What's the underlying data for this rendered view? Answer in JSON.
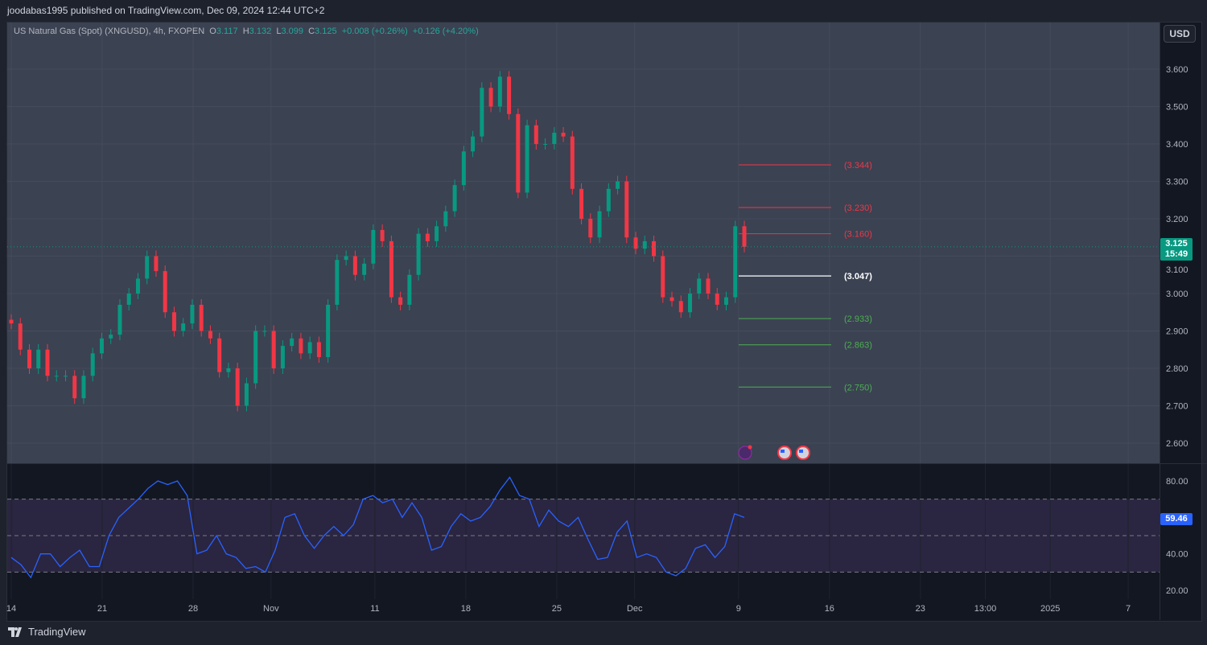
{
  "header": {
    "published": "joodabas1995 published on TradingView.com, Dec 09, 2024 12:44 UTC+2"
  },
  "legend": {
    "symbol": "US Natural Gas (Spot) (XNGUSD), 4h, FXOPEN",
    "o_label": "O",
    "o": "3.117",
    "h_label": "H",
    "h": "3.132",
    "l_label": "L",
    "l": "3.099",
    "c_label": "C",
    "c": "3.125",
    "change": "+0.008 (+0.26%)",
    "change2": "+0.126 (+4.20%)"
  },
  "currency": "USD",
  "last_price": {
    "price": "3.125",
    "countdown": "15:49"
  },
  "rsi_value": "59.46",
  "brand": "TradingView",
  "colors": {
    "up": "#089981",
    "down": "#f23645",
    "rsi": "#2962ff",
    "support": "#4caf50",
    "resistance": "#f23645",
    "pivot": "#ffffff"
  },
  "chart_data": [
    {
      "type": "candlestick",
      "interval": "4h",
      "x_start": "2024-10-14",
      "x_end": "2024-12-09",
      "ylim": [
        2.55,
        3.68
      ],
      "y_ticks": [
        "3.600",
        "3.500",
        "3.400",
        "3.300",
        "3.200",
        "3.100",
        "3.000",
        "2.900",
        "2.800",
        "2.700",
        "2.600"
      ],
      "grid": true,
      "closes": [
        2.92,
        2.85,
        2.8,
        2.85,
        2.78,
        2.78,
        2.78,
        2.72,
        2.78,
        2.84,
        2.88,
        2.89,
        2.97,
        3.0,
        3.04,
        3.1,
        3.06,
        2.95,
        2.9,
        2.92,
        2.97,
        2.9,
        2.88,
        2.79,
        2.8,
        2.7,
        2.76,
        2.9,
        2.9,
        2.8,
        2.86,
        2.88,
        2.84,
        2.87,
        2.83,
        2.97,
        3.09,
        3.1,
        3.05,
        3.08,
        3.17,
        3.14,
        2.99,
        2.97,
        3.05,
        3.16,
        3.14,
        3.18,
        3.22,
        3.29,
        3.38,
        3.42,
        3.55,
        3.5,
        3.58,
        3.48,
        3.27,
        3.45,
        3.4,
        3.4,
        3.43,
        3.42,
        3.28,
        3.2,
        3.15,
        3.22,
        3.28,
        3.3,
        3.15,
        3.12,
        3.14,
        3.1,
        2.99,
        2.98,
        2.95,
        3.0,
        3.04,
        3.0,
        2.97,
        2.99,
        3.18,
        3.125
      ],
      "levels": [
        {
          "value": 3.344,
          "label": "(3.344)",
          "kind": "resistance"
        },
        {
          "value": 3.23,
          "label": "(3.230)",
          "kind": "resistance"
        },
        {
          "value": 3.16,
          "label": "(3.160)",
          "kind": "resistance"
        },
        {
          "value": 3.047,
          "label": "(3.047)",
          "kind": "pivot"
        },
        {
          "value": 2.933,
          "label": "(2.933)",
          "kind": "support"
        },
        {
          "value": 2.863,
          "label": "(2.863)",
          "kind": "support"
        },
        {
          "value": 2.75,
          "label": "(2.750)",
          "kind": "support"
        }
      ],
      "x_ticks": [
        {
          "label": "14",
          "date": "2024-10-14"
        },
        {
          "label": "21",
          "date": "2024-10-21"
        },
        {
          "label": "28",
          "date": "2024-10-28"
        },
        {
          "label": "Nov",
          "date": "2024-11-03"
        },
        {
          "label": "11",
          "date": "2024-11-11"
        },
        {
          "label": "18",
          "date": "2024-11-18"
        },
        {
          "label": "25",
          "date": "2024-11-25"
        },
        {
          "label": "Dec",
          "date": "2024-12-01"
        },
        {
          "label": "9",
          "date": "2024-12-09"
        },
        {
          "label": "16",
          "date": "2024-12-16"
        },
        {
          "label": "23",
          "date": "2024-12-23"
        },
        {
          "label": "13:00",
          "date": "2024-12-28"
        },
        {
          "label": "2025",
          "date": "2025-01-02"
        },
        {
          "label": "7",
          "date": "2025-01-08"
        }
      ]
    },
    {
      "type": "line",
      "name": "RSI",
      "ylim": [
        15,
        87
      ],
      "y_ticks": [
        "80.00",
        "40.00",
        "20.00"
      ],
      "bands": [
        30,
        50,
        70
      ],
      "values": [
        38,
        34,
        27,
        40,
        40,
        33,
        38,
        42,
        33,
        33,
        50,
        60,
        65,
        70,
        76,
        80,
        78,
        80,
        72,
        40,
        42,
        50,
        40,
        38,
        32,
        33,
        30,
        42,
        60,
        62,
        50,
        43,
        50,
        55,
        50,
        56,
        70,
        72,
        68,
        70,
        60,
        68,
        60,
        42,
        44,
        55,
        62,
        58,
        60,
        66,
        75,
        82,
        72,
        70,
        55,
        64,
        58,
        55,
        60,
        48,
        37,
        38,
        52,
        58,
        38,
        40,
        38,
        30,
        28,
        32,
        43,
        45,
        38,
        44,
        62,
        60
      ]
    }
  ]
}
